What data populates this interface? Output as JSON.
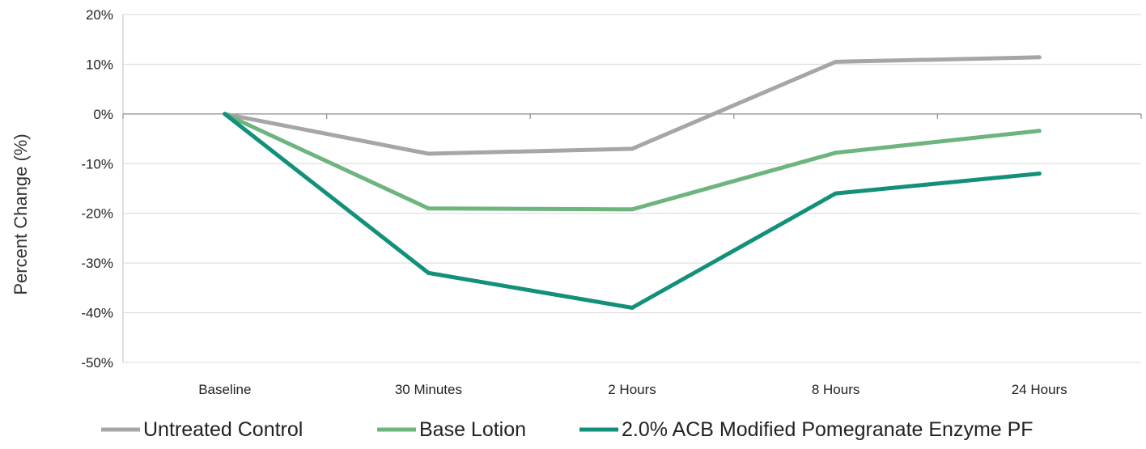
{
  "chart_data": {
    "type": "line",
    "title": "",
    "xlabel": "",
    "ylabel": "Percent Change (%)",
    "categories": [
      "Baseline",
      "30 Minutes",
      "2 Hours",
      "8 Hours",
      "24 Hours"
    ],
    "ylim": [
      -50,
      20
    ],
    "yticks": [
      20,
      10,
      0,
      -10,
      -20,
      -30,
      -40,
      -50
    ],
    "ytick_labels": [
      "20%",
      "10%",
      "0%",
      "-10%",
      "-20%",
      "-30%",
      "-40%",
      "-50%"
    ],
    "grid": true,
    "legend": "bottom",
    "series": [
      {
        "name": "Untreated Control",
        "color": "#a6a6a6",
        "values": [
          0,
          -8,
          -7,
          10.5,
          11.4
        ]
      },
      {
        "name": "Base Lotion",
        "color": "#6db47f",
        "values": [
          0,
          -19,
          -19.2,
          -7.8,
          -3.4
        ]
      },
      {
        "name": "2.0% ACB Modified Pomegranate Enzyme PF",
        "color": "#12907a",
        "values": [
          0,
          -32,
          -39,
          -16,
          -12
        ]
      }
    ]
  }
}
